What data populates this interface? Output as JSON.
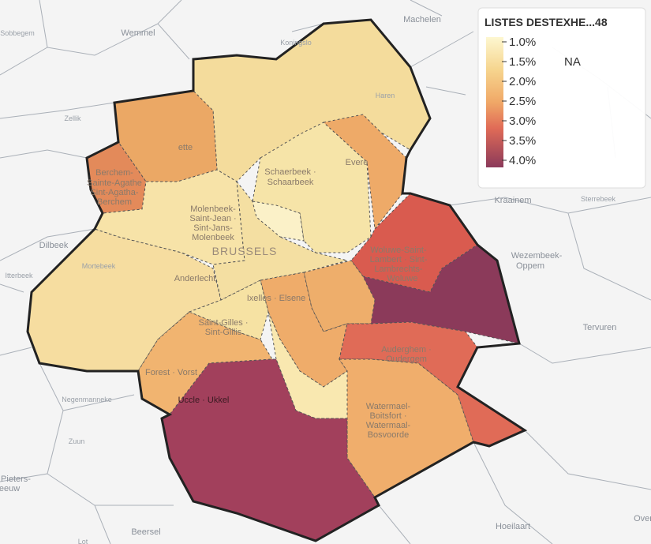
{
  "legend": {
    "title": "LISTES DESTEXHE...48",
    "ticks": [
      "1.0%",
      "1.5%",
      "2.0%",
      "2.5%",
      "3.0%",
      "3.5%",
      "4.0%"
    ],
    "na": "NA"
  },
  "outside_places": [
    "Machelen",
    "Wemmel",
    "Sobbegem",
    "Koningslo",
    "Zellik",
    "Dilbeek",
    "Itterbeek",
    "Kraainem",
    "Sterrebeek",
    "Wezembeek-",
    "Oppem",
    "Tervuren",
    "Negenmanneke",
    "Zuun",
    "Pieters-",
    "eeuw",
    "Beersel",
    "Lot",
    "Hoeilaart",
    "Over"
  ],
  "communes": {
    "haren": "Haren",
    "evere": "Evere",
    "jette": "ette",
    "berchem": [
      "Berchem-",
      "Sainte-Agathe",
      "Sint-Agatha-",
      "Berchem"
    ],
    "schaerbeek": [
      "Schaerbeek ·",
      "Schaarbeek"
    ],
    "molenbeek": [
      "Molenbeek-",
      "Saint-Jean ·",
      "Sint-Jans-",
      "Molenbeek"
    ],
    "brussels": "BRUSSELS",
    "woluwe": [
      "Woluwe-Saint-",
      "Lambert · Sint-",
      "Lambrechts-",
      "Woluwe"
    ],
    "anderlecht": "Anderlecht",
    "mbeek": "Mortebeek",
    "ixelles": "Ixelles · Elsene",
    "saintgilles": [
      "Saint-Gilles ·",
      "Sint-Gillis"
    ],
    "auderghem": [
      "Auderghem ·",
      "Oudergem"
    ],
    "forest": "Forest · Vorst",
    "uccle": "Uccle · Ukkel",
    "watermael": [
      "Watermael-",
      "Boitsfort ·",
      "Watermaal-",
      "Bosvoorde"
    ]
  }
}
